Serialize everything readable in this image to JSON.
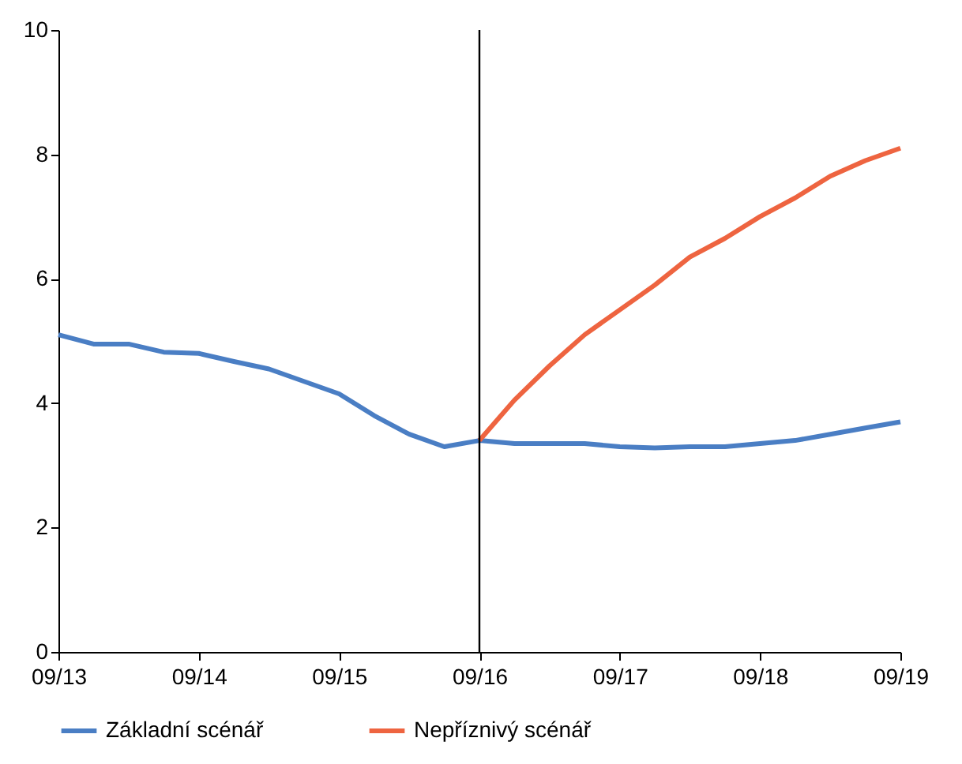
{
  "chart_data": {
    "type": "line",
    "categories": [
      "09/13",
      null,
      null,
      null,
      "09/14",
      null,
      null,
      null,
      "09/15",
      null,
      null,
      null,
      "09/16",
      null,
      null,
      null,
      "09/17",
      null,
      null,
      null,
      "09/18",
      null,
      null,
      null,
      "09/19"
    ],
    "series": [
      {
        "name": "Základní scénář",
        "color": "#4a7ec4",
        "values": [
          5.1,
          4.95,
          4.95,
          4.82,
          4.8,
          4.67,
          4.55,
          4.35,
          4.15,
          3.8,
          3.5,
          3.3,
          3.4,
          3.35,
          3.35,
          3.35,
          3.3,
          3.28,
          3.3,
          3.3,
          3.35,
          3.4,
          3.5,
          3.6,
          3.7
        ]
      },
      {
        "name": "Nepříznivý scénář",
        "color": "#ee6440",
        "values": [
          null,
          null,
          null,
          null,
          null,
          null,
          null,
          null,
          null,
          null,
          null,
          null,
          3.4,
          4.05,
          4.6,
          5.1,
          5.5,
          5.9,
          6.35,
          6.65,
          7.0,
          7.3,
          7.65,
          7.9,
          8.1
        ]
      }
    ],
    "ylim": [
      0,
      10
    ],
    "yticks": [
      0,
      2,
      4,
      6,
      8,
      10
    ],
    "ref_lines": [
      {
        "axis": "x",
        "value": "09/16",
        "color": "#000000"
      }
    ],
    "legend": "bottom",
    "marker": "none",
    "line_style": "solid"
  }
}
